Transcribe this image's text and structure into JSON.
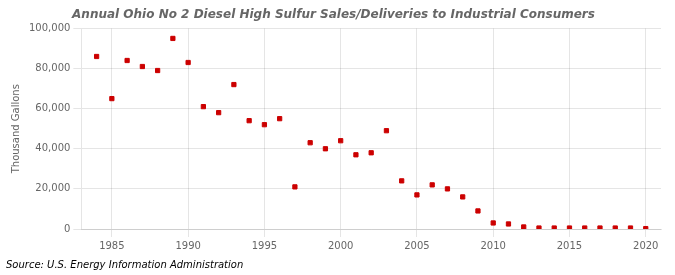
{
  "chart_data": {
    "type": "scatter",
    "title": "Annual Ohio No 2 Diesel High Sulfur Sales/Deliveries to Industrial Consumers",
    "ylabel": "Thousand Gallons",
    "annotations": [
      "Source: U.S. Energy Information Administration"
    ],
    "x": [
      1984,
      1985,
      1986,
      1987,
      1988,
      1989,
      1990,
      1991,
      1992,
      1993,
      1994,
      1995,
      1996,
      1997,
      1998,
      1999,
      2000,
      2001,
      2002,
      2003,
      2004,
      2005,
      2006,
      2007,
      2008,
      2009,
      2010,
      2011,
      2012,
      2013,
      2014,
      2015,
      2016,
      2017,
      2018,
      2019,
      2020
    ],
    "values": [
      86000,
      65000,
      84000,
      81000,
      79000,
      95000,
      83000,
      61000,
      58000,
      72000,
      54000,
      52000,
      55000,
      21000,
      43000,
      40000,
      44000,
      37000,
      38000,
      49000,
      24000,
      17000,
      22000,
      20000,
      16000,
      9000,
      3000,
      2500,
      1000,
      500,
      500,
      500,
      500,
      500,
      500,
      500,
      200
    ],
    "color": "#cc0000",
    "marker": "square",
    "xlim": [
      1983,
      2021
    ],
    "xticks": [
      1985,
      1990,
      1995,
      2000,
      2005,
      2010,
      2015,
      2020
    ],
    "ylim": [
      0,
      100000
    ],
    "yticks": [
      0,
      {
        "value": 20000,
        "label": "20,000"
      },
      {
        "value": 40000,
        "label": "40,000"
      },
      {
        "value": 60000,
        "label": "60,000"
      },
      {
        "value": 80000,
        "label": "80,000"
      },
      {
        "value": 100000,
        "label": "100,000"
      }
    ],
    "grid": true
  }
}
